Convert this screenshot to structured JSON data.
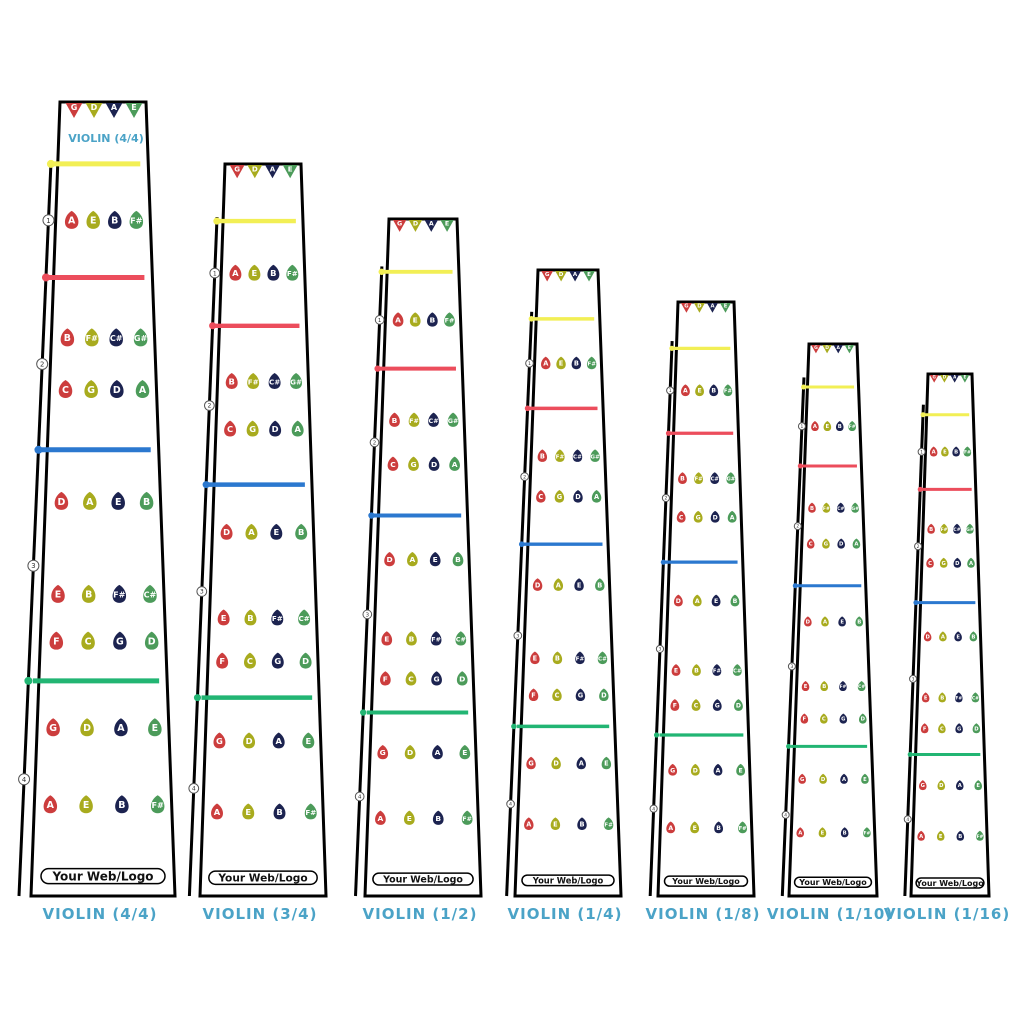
{
  "palette": {
    "red": "#cc3d3d",
    "olive": "#a8ab1e",
    "navy": "#1c2350",
    "green": "#4c9b5a",
    "tape_yellow": "#f2ef55",
    "tape_red": "#ec4d5c",
    "tape_blue": "#2b78cf",
    "tape_green": "#22b573",
    "label_blue": "#4ba3c7",
    "outline": "#000000"
  },
  "strings": [
    {
      "label": "G",
      "color": "red"
    },
    {
      "label": "D",
      "color": "olive"
    },
    {
      "label": "A",
      "color": "navy"
    },
    {
      "label": "E",
      "color": "green"
    }
  ],
  "tapes": [
    {
      "name": "first-finger-tape",
      "color": "tape_yellow"
    },
    {
      "name": "second-finger-tape",
      "color": "tape_red"
    },
    {
      "name": "third-finger-tape",
      "color": "tape_blue"
    },
    {
      "name": "fourth-finger-tape",
      "color": "tape_green"
    }
  ],
  "note_rows": [
    {
      "notes": [
        "A",
        "E",
        "B",
        "F#"
      ],
      "colors": [
        "red",
        "olive",
        "navy",
        "green"
      ]
    },
    {
      "notes": [
        "B",
        "F#",
        "C#",
        "G#"
      ],
      "colors": [
        "red",
        "olive",
        "navy",
        "green"
      ]
    },
    {
      "notes": [
        "C",
        "G",
        "D",
        "A"
      ],
      "colors": [
        "red",
        "olive",
        "navy",
        "green"
      ]
    },
    {
      "notes": [
        "D",
        "A",
        "E",
        "B"
      ],
      "colors": [
        "red",
        "olive",
        "navy",
        "green"
      ]
    },
    {
      "notes": [
        "E",
        "B",
        "F#",
        "C#"
      ],
      "colors": [
        "red",
        "olive",
        "navy",
        "green"
      ]
    },
    {
      "notes": [
        "F",
        "C",
        "G",
        "D"
      ],
      "colors": [
        "red",
        "olive",
        "navy",
        "green"
      ]
    },
    {
      "notes": [
        "G",
        "D",
        "A",
        "E"
      ],
      "colors": [
        "red",
        "olive",
        "navy",
        "green"
      ]
    },
    {
      "notes": [
        "A",
        "E",
        "B",
        "F#"
      ],
      "colors": [
        "red",
        "olive",
        "navy",
        "green"
      ]
    }
  ],
  "finger_numbers": [
    "1",
    "2",
    "3",
    "4"
  ],
  "logo_text": "Your Web/Logo",
  "inner_title": "VIOLIN (4/4)",
  "fingerboards": [
    {
      "id": "violin-4-4",
      "label": "VIOLIN (4/4)"
    },
    {
      "id": "violin-3-4",
      "label": "VIOLIN (3/4)"
    },
    {
      "id": "violin-1-2",
      "label": "VIOLIN (1/2)"
    },
    {
      "id": "violin-1-4",
      "label": "VIOLIN (1/4)"
    },
    {
      "id": "violin-1-8",
      "label": "VIOLIN (1/8)"
    },
    {
      "id": "violin-1-10",
      "label": "VIOLIN (1/10)"
    },
    {
      "id": "violin-1-16",
      "label": "VIOLIN (1/16)"
    }
  ]
}
